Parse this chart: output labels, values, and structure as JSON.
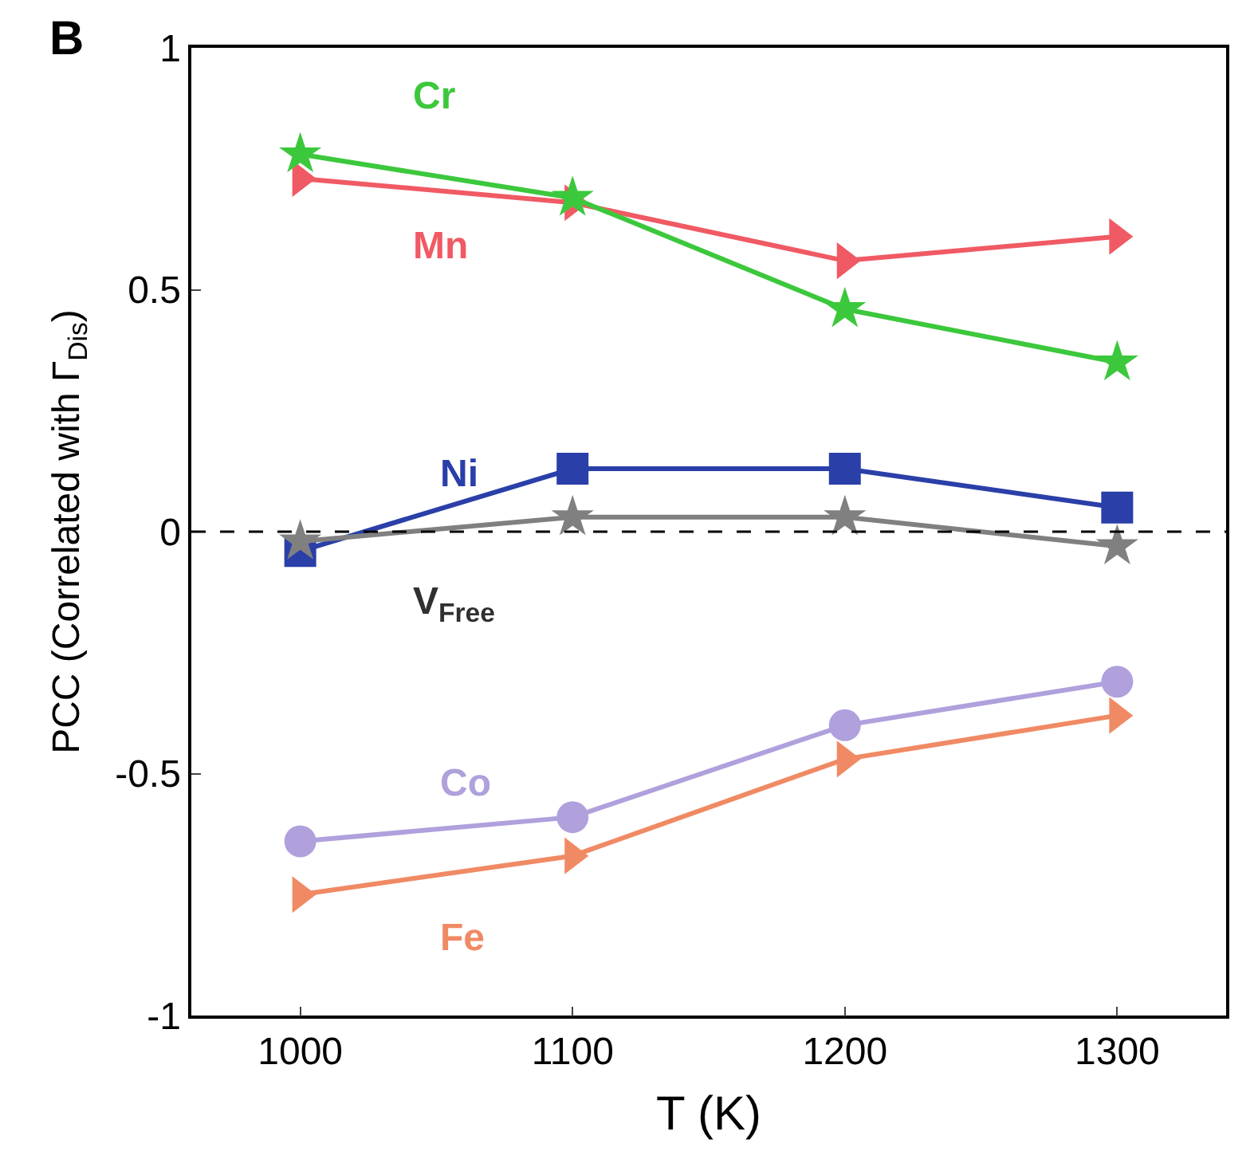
{
  "chart_data": {
    "type": "line",
    "xlabel": "T (K)",
    "ylabel": "PCC (Correlated with Γ$_{Dis}$)",
    "annotations": [
      "B"
    ],
    "x": [
      1000,
      1100,
      1200,
      1300
    ],
    "series": [
      {
        "name": "Cr",
        "color": "#3cc83c",
        "marker": "star",
        "values": [
          0.78,
          0.69,
          0.46,
          0.35
        ]
      },
      {
        "name": "Mn",
        "color": "#f05a64",
        "marker": "triangle",
        "values": [
          0.73,
          0.68,
          0.56,
          0.61
        ]
      },
      {
        "name": "Ni",
        "color": "#2a3fa8",
        "marker": "square",
        "values": [
          -0.04,
          0.13,
          0.13,
          0.05
        ]
      },
      {
        "name": "V$_{Free}$",
        "color": "#808080",
        "marker": "star",
        "values": [
          -0.02,
          0.03,
          0.03,
          -0.03
        ]
      },
      {
        "name": "Co",
        "color": "#b0a0dc",
        "marker": "circle",
        "values": [
          -0.64,
          -0.59,
          -0.4,
          -0.31
        ]
      },
      {
        "name": "Fe",
        "color": "#f08a64",
        "marker": "triangle",
        "values": [
          -0.75,
          -0.67,
          -0.47,
          -0.38
        ]
      }
    ],
    "xlim": [
      960,
      1340
    ],
    "xticks": [
      1000,
      1100,
      1200,
      1300
    ],
    "ylim": [
      -1,
      1
    ],
    "yticks": [
      -1,
      -0.5,
      0,
      0.5,
      1
    ],
    "ref_lines": [
      {
        "axis": "y",
        "value": 0,
        "color": "#000000",
        "line_style": "dashed"
      }
    ],
    "legend": false,
    "line_style": "solid"
  }
}
